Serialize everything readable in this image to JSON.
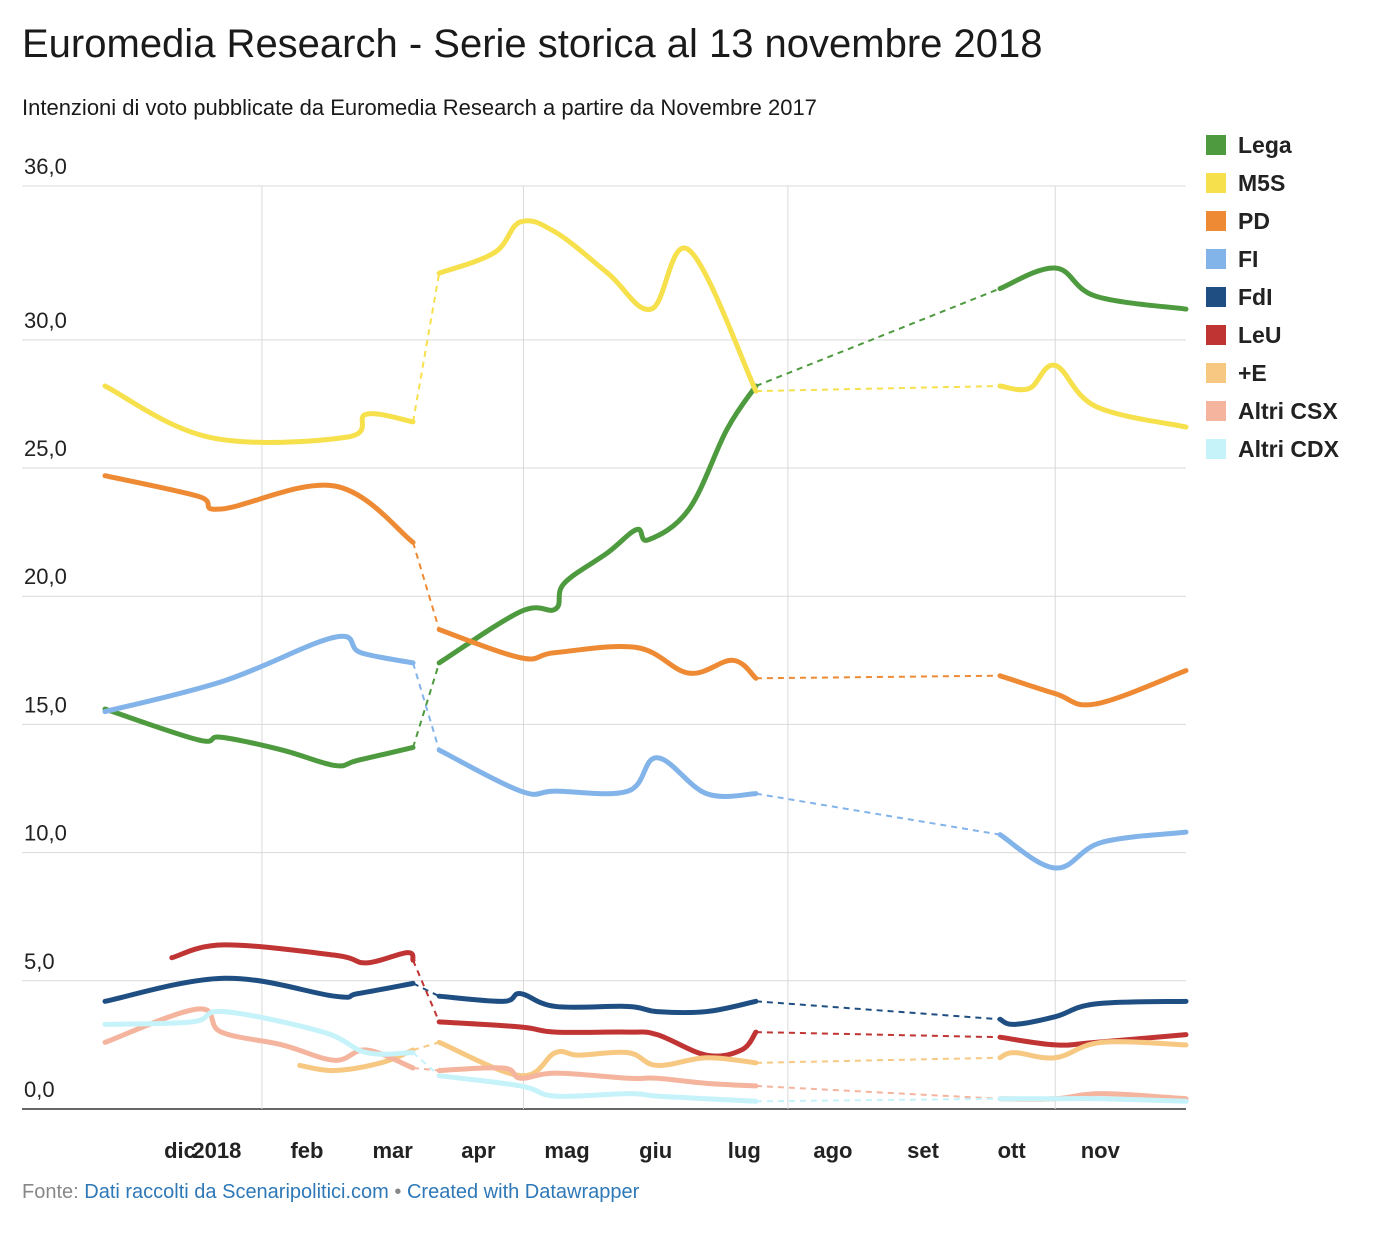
{
  "chart_data": {
    "type": "line",
    "title": "Euromedia Research - Serie storica al 13 novembre 2018",
    "subtitle": "Intenzioni di voto pubblicate da Euromedia Research a partire da Novembre 2017",
    "source_label": "Fonte:",
    "source_text": "Dati raccolti da Scenaripolitici.com",
    "credit_separator": "•",
    "credit_text": "Created with Datawrapper",
    "x_axis": {
      "type": "date",
      "range": [
        "2017-11-08",
        "2018-11-15"
      ],
      "ticks": [
        {
          "date": "2017-12-01",
          "label": "dic"
        },
        {
          "date": "2018-01-01",
          "label": "2018"
        },
        {
          "date": "2018-02-01",
          "label": "feb"
        },
        {
          "date": "2018-03-01",
          "label": "mar"
        },
        {
          "date": "2018-04-01",
          "label": "apr"
        },
        {
          "date": "2018-05-01",
          "label": "mag"
        },
        {
          "date": "2018-06-01",
          "label": "giu"
        },
        {
          "date": "2018-07-01",
          "label": "lug"
        },
        {
          "date": "2018-08-01",
          "label": "ago"
        },
        {
          "date": "2018-09-01",
          "label": "set"
        },
        {
          "date": "2018-10-01",
          "label": "ott"
        },
        {
          "date": "2018-11-01",
          "label": "nov"
        }
      ],
      "vertical_gridlines": [
        "2018-01-01",
        "2018-04-01",
        "2018-07-01",
        "2018-10-01"
      ]
    },
    "y_axis": {
      "range": [
        0,
        36
      ],
      "ticks": [
        {
          "value": 0,
          "label": "0,0"
        },
        {
          "value": 5,
          "label": "5,0"
        },
        {
          "value": 10,
          "label": "10,0"
        },
        {
          "value": 15,
          "label": "15,0"
        },
        {
          "value": 20,
          "label": "20,0"
        },
        {
          "value": 25,
          "label": "25,0"
        },
        {
          "value": 30,
          "label": "30,0"
        },
        {
          "value": 36,
          "label": "36,0"
        }
      ]
    },
    "grid": true,
    "legend_position": "right",
    "series": [
      {
        "name": "Lega",
        "color": "#4e9a3e",
        "segments": [
          [
            [
              "2017-11-08",
              15.6
            ],
            [
              "2017-12-10",
              14.4
            ],
            [
              "2017-12-18",
              14.5
            ],
            [
              "2018-01-08",
              14.0
            ],
            [
              "2018-01-26",
              13.4
            ],
            [
              "2018-02-03",
              13.6
            ],
            [
              "2018-02-22",
              14.1
            ]
          ],
          [
            [
              "2018-03-03",
              17.4
            ],
            [
              "2018-03-31",
              19.4
            ],
            [
              "2018-04-12",
              19.5
            ],
            [
              "2018-04-15",
              20.5
            ],
            [
              "2018-04-30",
              21.7
            ],
            [
              "2018-05-10",
              22.6
            ],
            [
              "2018-05-14",
              22.2
            ],
            [
              "2018-05-28",
              23.4
            ],
            [
              "2018-06-10",
              26.5
            ],
            [
              "2018-06-20",
              28.2
            ]
          ],
          [
            [
              "2018-09-12",
              32.0
            ],
            [
              "2018-10-01",
              32.8
            ],
            [
              "2018-10-15",
              31.7
            ],
            [
              "2018-11-15",
              31.2
            ]
          ]
        ]
      },
      {
        "name": "M5S",
        "color": "#f6e04c",
        "segments": [
          [
            [
              "2017-11-08",
              28.2
            ],
            [
              "2017-12-14",
              26.2
            ],
            [
              "2018-01-30",
              26.2
            ],
            [
              "2018-02-06",
              27.1
            ],
            [
              "2018-02-22",
              26.8
            ]
          ],
          [
            [
              "2018-03-03",
              32.6
            ],
            [
              "2018-03-22",
              33.4
            ],
            [
              "2018-03-31",
              34.6
            ],
            [
              "2018-04-12",
              34.2
            ],
            [
              "2018-04-30",
              32.6
            ],
            [
              "2018-05-15",
              31.2
            ],
            [
              "2018-05-28",
              33.5
            ],
            [
              "2018-06-20",
              28.0
            ]
          ],
          [
            [
              "2018-09-12",
              28.2
            ],
            [
              "2018-09-22",
              28.1
            ],
            [
              "2018-10-01",
              29.0
            ],
            [
              "2018-10-15",
              27.4
            ],
            [
              "2018-11-15",
              26.6
            ]
          ]
        ]
      },
      {
        "name": "PD",
        "color": "#ee8a34",
        "segments": [
          [
            [
              "2017-11-08",
              24.7
            ],
            [
              "2017-12-10",
              23.9
            ],
            [
              "2017-12-18",
              23.4
            ],
            [
              "2018-01-26",
              24.3
            ],
            [
              "2018-02-22",
              22.1
            ]
          ],
          [
            [
              "2018-03-03",
              18.7
            ],
            [
              "2018-03-31",
              17.6
            ],
            [
              "2018-04-12",
              17.8
            ],
            [
              "2018-05-10",
              18.0
            ],
            [
              "2018-05-28",
              17.0
            ],
            [
              "2018-06-12",
              17.5
            ],
            [
              "2018-06-20",
              16.8
            ]
          ],
          [
            [
              "2018-09-12",
              16.9
            ],
            [
              "2018-10-01",
              16.2
            ],
            [
              "2018-10-15",
              15.8
            ],
            [
              "2018-11-15",
              17.1
            ]
          ]
        ]
      },
      {
        "name": "FI",
        "color": "#82b4ea",
        "segments": [
          [
            [
              "2017-11-08",
              15.5
            ],
            [
              "2017-12-19",
              16.7
            ],
            [
              "2018-01-26",
              18.4
            ],
            [
              "2018-02-04",
              17.8
            ],
            [
              "2018-02-22",
              17.4
            ]
          ],
          [
            [
              "2018-03-03",
              14.0
            ],
            [
              "2018-03-31",
              12.4
            ],
            [
              "2018-04-12",
              12.4
            ],
            [
              "2018-05-07",
              12.4
            ],
            [
              "2018-05-17",
              13.7
            ],
            [
              "2018-06-03",
              12.3
            ],
            [
              "2018-06-20",
              12.3
            ]
          ],
          [
            [
              "2018-09-12",
              10.7
            ],
            [
              "2018-10-01",
              9.4
            ],
            [
              "2018-10-17",
              10.4
            ],
            [
              "2018-11-15",
              10.8
            ]
          ]
        ]
      },
      {
        "name": "FdI",
        "color": "#1f4f82",
        "segments": [
          [
            [
              "2017-11-08",
              4.2
            ],
            [
              "2017-12-19",
              5.1
            ],
            [
              "2018-01-26",
              4.4
            ],
            [
              "2018-02-03",
              4.5
            ],
            [
              "2018-02-22",
              4.9
            ]
          ],
          [
            [
              "2018-03-03",
              4.4
            ],
            [
              "2018-03-25",
              4.2
            ],
            [
              "2018-03-31",
              4.5
            ],
            [
              "2018-04-12",
              4.0
            ],
            [
              "2018-05-07",
              4.0
            ],
            [
              "2018-05-17",
              3.8
            ],
            [
              "2018-06-03",
              3.8
            ],
            [
              "2018-06-20",
              4.2
            ]
          ],
          [
            [
              "2018-09-12",
              3.5
            ],
            [
              "2018-09-17",
              3.3
            ],
            [
              "2018-10-01",
              3.6
            ],
            [
              "2018-10-15",
              4.1
            ],
            [
              "2018-11-15",
              4.2
            ]
          ]
        ]
      },
      {
        "name": "LeU",
        "color": "#c03434",
        "segments": [
          [
            [
              "2017-12-01",
              5.9
            ],
            [
              "2017-12-19",
              6.4
            ],
            [
              "2018-01-26",
              6.0
            ],
            [
              "2018-02-06",
              5.7
            ],
            [
              "2018-02-20",
              6.1
            ],
            [
              "2018-02-22",
              5.8
            ]
          ],
          [
            [
              "2018-03-03",
              3.4
            ],
            [
              "2018-03-31",
              3.2
            ],
            [
              "2018-04-12",
              3.0
            ],
            [
              "2018-05-07",
              3.0
            ],
            [
              "2018-05-17",
              2.9
            ],
            [
              "2018-06-03",
              2.1
            ],
            [
              "2018-06-15",
              2.3
            ],
            [
              "2018-06-20",
              3.0
            ]
          ],
          [
            [
              "2018-09-12",
              2.8
            ],
            [
              "2018-10-01",
              2.5
            ],
            [
              "2018-10-15",
              2.6
            ],
            [
              "2018-11-15",
              2.9
            ]
          ]
        ]
      },
      {
        "name": "+E",
        "color": "#f6c882",
        "segments": [
          [
            [
              "2018-01-14",
              1.7
            ],
            [
              "2018-01-26",
              1.5
            ],
            [
              "2018-02-11",
              1.8
            ],
            [
              "2018-02-22",
              2.3
            ]
          ],
          [
            [
              "2018-03-03",
              2.6
            ],
            [
              "2018-03-31",
              1.3
            ],
            [
              "2018-04-12",
              2.2
            ],
            [
              "2018-04-20",
              2.1
            ],
            [
              "2018-05-07",
              2.2
            ],
            [
              "2018-05-17",
              1.7
            ],
            [
              "2018-06-03",
              2.0
            ],
            [
              "2018-06-20",
              1.8
            ]
          ],
          [
            [
              "2018-09-12",
              2.0
            ],
            [
              "2018-09-17",
              2.2
            ],
            [
              "2018-10-01",
              2.0
            ],
            [
              "2018-10-17",
              2.6
            ],
            [
              "2018-11-15",
              2.5
            ]
          ]
        ]
      },
      {
        "name": "Altri CSX",
        "color": "#f4b49e",
        "segments": [
          [
            [
              "2017-11-08",
              2.6
            ],
            [
              "2017-12-10",
              3.9
            ],
            [
              "2017-12-18",
              3.0
            ],
            [
              "2018-01-08",
              2.5
            ],
            [
              "2018-01-26",
              1.9
            ],
            [
              "2018-02-06",
              2.3
            ],
            [
              "2018-02-22",
              1.6
            ]
          ],
          [
            [
              "2018-03-03",
              1.5
            ],
            [
              "2018-03-25",
              1.6
            ],
            [
              "2018-03-31",
              1.2
            ],
            [
              "2018-04-12",
              1.4
            ],
            [
              "2018-05-07",
              1.2
            ],
            [
              "2018-05-17",
              1.2
            ],
            [
              "2018-06-03",
              1.0
            ],
            [
              "2018-06-20",
              0.9
            ]
          ],
          [
            [
              "2018-09-12",
              0.4
            ],
            [
              "2018-10-01",
              0.4
            ],
            [
              "2018-10-17",
              0.6
            ],
            [
              "2018-11-15",
              0.4
            ]
          ]
        ]
      },
      {
        "name": "Altri CDX",
        "color": "#c6f2fa",
        "segments": [
          [
            [
              "2017-11-08",
              3.3
            ],
            [
              "2017-12-08",
              3.4
            ],
            [
              "2017-12-19",
              3.8
            ],
            [
              "2018-01-22",
              3.0
            ],
            [
              "2018-02-06",
              2.2
            ],
            [
              "2018-02-22",
              2.2
            ]
          ],
          [
            [
              "2018-03-03",
              1.3
            ],
            [
              "2018-03-31",
              0.9
            ],
            [
              "2018-04-12",
              0.5
            ],
            [
              "2018-05-07",
              0.6
            ],
            [
              "2018-05-17",
              0.5
            ],
            [
              "2018-06-03",
              0.4
            ],
            [
              "2018-06-20",
              0.3
            ]
          ],
          [
            [
              "2018-09-12",
              0.4
            ],
            [
              "2018-10-01",
              0.4
            ],
            [
              "2018-10-17",
              0.4
            ],
            [
              "2018-11-15",
              0.3
            ]
          ]
        ]
      }
    ]
  }
}
